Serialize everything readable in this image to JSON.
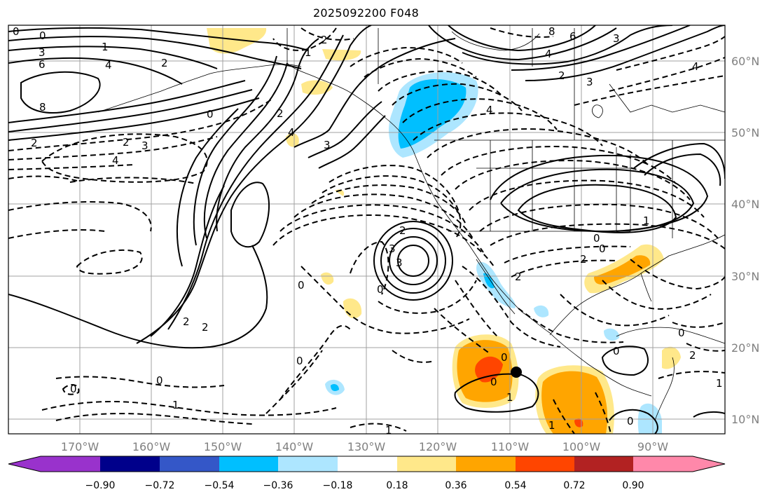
{
  "title": "2025092200 F048",
  "map": {
    "lon_labels": [
      "170°W",
      "160°W",
      "150°W",
      "140°W",
      "130°W",
      "120°W",
      "110°W",
      "100°W",
      "90°W"
    ],
    "lat_labels": [
      "60°N",
      "50°N",
      "40°N",
      "30°N",
      "20°N",
      "10°N"
    ],
    "marker": "storm-center"
  },
  "contour_labels": [
    "0",
    "0",
    "3",
    "6",
    "8",
    "2",
    "4",
    "2",
    "1",
    "2",
    "0",
    "2",
    "6",
    "8",
    "4",
    "3",
    "2",
    "4",
    "3",
    "2",
    "4",
    "1",
    "2",
    "0",
    "2",
    "0",
    "3",
    "4",
    "3",
    "3",
    "2",
    "0",
    "0",
    "1",
    "0",
    "0",
    "0",
    "1",
    "0",
    "1",
    "1",
    "2",
    "0",
    "1",
    "2",
    "0",
    "0",
    "0",
    "1",
    "4",
    "3",
    "2"
  ],
  "colorbar": {
    "ticks": [
      "−0.90",
      "−0.72",
      "−0.54",
      "−0.36",
      "−0.18",
      "0.18",
      "0.36",
      "0.54",
      "0.72",
      "0.90"
    ],
    "colors": [
      "#9932cc",
      "#00008b",
      "#3457c8",
      "#00bfff",
      "#ade6ff",
      "#ffffff",
      "#ffe88a",
      "#ffa500",
      "#ff4500",
      "#b22222",
      "#ff88aa"
    ]
  }
}
